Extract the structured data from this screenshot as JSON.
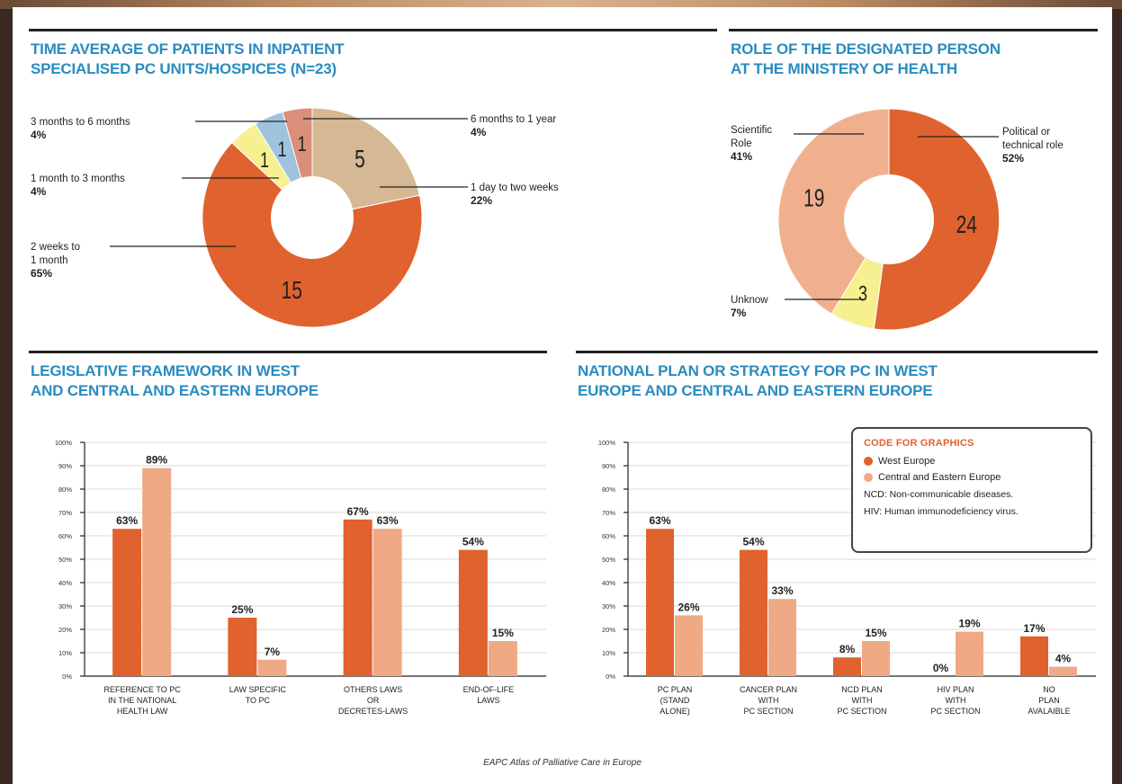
{
  "source": "EAPC Atlas of Palliative Care in Europe",
  "colors": {
    "west": "#e0622e",
    "central": "#f0a985",
    "dark_orange": "#e0622e",
    "tan": "#d6b894",
    "yellow": "#f7f090",
    "blue": "#9fc3dd",
    "rose": "#d98f7a",
    "light_salmon": "#f0b08e",
    "title_blue": "#2a8bbf"
  },
  "legend": {
    "title": "CODE FOR GRAPHICS",
    "west_label": "West Europe",
    "central_label": "Central and Eastern Europe",
    "ncd_note": "NCD: Non-communicable diseases.",
    "hiv_note": "HIV: Human immunodeficiency virus."
  },
  "chart_data": [
    {
      "id": "time-average",
      "type": "pie",
      "title_lines": [
        "TIME AVERAGE OF PATIENTS IN INPATIENT",
        "SPECIALISED PC UNITS/HOSPICES (N=23)"
      ],
      "slices": [
        {
          "label": "1 day to two weeks",
          "value": 5,
          "percent": "22%",
          "color": "tan"
        },
        {
          "label": "2 weeks to 1 month",
          "value": 15,
          "percent": "65%",
          "color": "dark_orange"
        },
        {
          "label": "1 month to 3 months",
          "value": 1,
          "percent": "4%",
          "color": "yellow"
        },
        {
          "label": "3 months to 6 months",
          "value": 1,
          "percent": "4%",
          "color": "blue"
        },
        {
          "label": "6 months to 1 year",
          "value": 1,
          "percent": "4%",
          "color": "rose"
        }
      ]
    },
    {
      "id": "role",
      "type": "pie",
      "title_lines": [
        "ROLE OF THE DESIGNATED PERSON",
        "AT THE MINISTERY OF HEALTH"
      ],
      "slices": [
        {
          "label": "Political or technical role",
          "value": 24,
          "percent": "52%",
          "color": "dark_orange"
        },
        {
          "label": "Unknow",
          "value": 3,
          "percent": "7%",
          "color": "yellow"
        },
        {
          "label": "Scientific Role",
          "value": 19,
          "percent": "41%",
          "color": "light_salmon"
        }
      ]
    },
    {
      "id": "legislative",
      "type": "bar",
      "title_lines": [
        "LEGISLATIVE FRAMEWORK IN WEST",
        "AND CENTRAL AND EASTERN EUROPE"
      ],
      "ylim": [
        0,
        100
      ],
      "yticks": [
        "0%",
        "10%",
        "20%",
        "30%",
        "40%",
        "50%",
        "60%",
        "70%",
        "80%",
        "90%",
        "100%"
      ],
      "categories": [
        [
          "REFERENCE TO PC",
          "IN THE NATIONAL",
          "HEALTH LAW"
        ],
        [
          "LAW SPECIFIC",
          "TO PC"
        ],
        [
          "OTHERS LAWS",
          "OR",
          "DECRETES-LAWS"
        ],
        [
          "END-OF-LIFE",
          "LAWS"
        ]
      ],
      "series": [
        {
          "name": "West Europe",
          "values": [
            63,
            25,
            67,
            54
          ],
          "labels": [
            "63%",
            "25%",
            "67%",
            "54%"
          ]
        },
        {
          "name": "Central and Eastern Europe",
          "values": [
            89,
            7,
            63,
            15
          ],
          "labels": [
            "89%",
            "7%",
            "63%",
            "15%"
          ]
        }
      ]
    },
    {
      "id": "national-plan",
      "type": "bar",
      "title_lines": [
        "NATIONAL PLAN OR STRATEGY FOR PC IN WEST",
        "EUROPE AND CENTRAL AND EASTERN EUROPE"
      ],
      "ylim": [
        0,
        100
      ],
      "yticks": [
        "0%",
        "10%",
        "20%",
        "30%",
        "40%",
        "50%",
        "60%",
        "70%",
        "80%",
        "90%",
        "100%"
      ],
      "categories": [
        [
          "PC PLAN",
          "(STAND",
          "ALONE)"
        ],
        [
          "CANCER PLAN",
          "WITH",
          "PC SECTION"
        ],
        [
          "NCD PLAN",
          "WITH",
          "PC SECTION"
        ],
        [
          "HIV PLAN",
          "WITH",
          "PC SECTION"
        ],
        [
          "NO",
          "PLAN",
          "AVALAIBLE"
        ]
      ],
      "series": [
        {
          "name": "West Europe",
          "values": [
            63,
            54,
            8,
            0,
            17
          ],
          "labels": [
            "63%",
            "54%",
            "8%",
            "0%",
            "17%"
          ]
        },
        {
          "name": "Central and Eastern Europe",
          "values": [
            26,
            33,
            15,
            19,
            4
          ],
          "labels": [
            "26%",
            "33%",
            "15%",
            "19%",
            "4%"
          ]
        }
      ]
    }
  ]
}
